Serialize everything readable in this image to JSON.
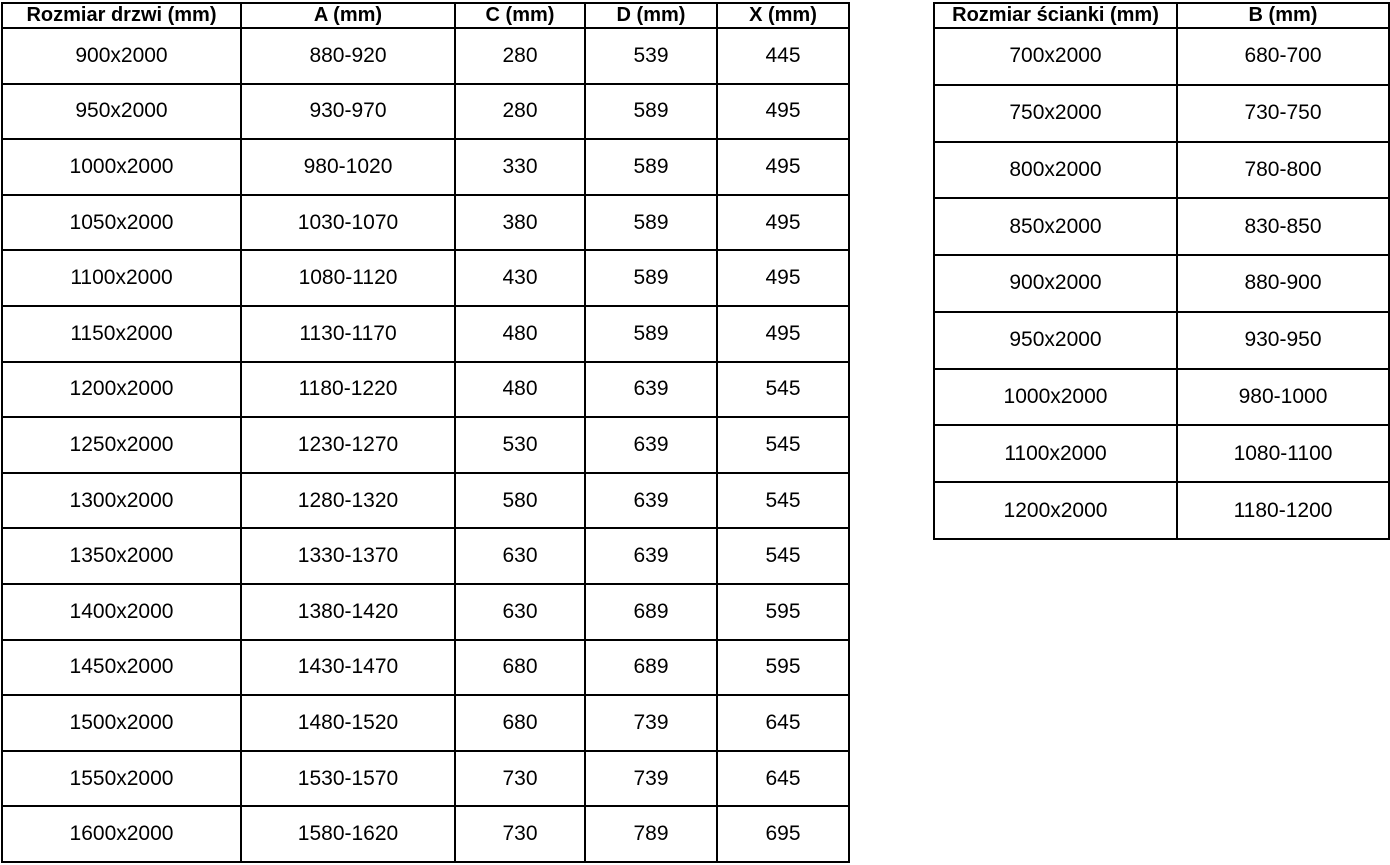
{
  "colors": {
    "background": "#ffffff",
    "border": "#000000",
    "text": "#000000"
  },
  "chart_data": [
    {
      "type": "table",
      "name": "door-size-table",
      "columns": [
        "Rozmiar drzwi (mm)",
        "A (mm)",
        "C (mm)",
        "D (mm)",
        "X (mm)"
      ],
      "rows": [
        [
          "900x2000",
          "880-920",
          "280",
          "539",
          "445"
        ],
        [
          "950x2000",
          "930-970",
          "280",
          "589",
          "495"
        ],
        [
          "1000x2000",
          "980-1020",
          "330",
          "589",
          "495"
        ],
        [
          "1050x2000",
          "1030-1070",
          "380",
          "589",
          "495"
        ],
        [
          "1100x2000",
          "1080-1120",
          "430",
          "589",
          "495"
        ],
        [
          "1150x2000",
          "1130-1170",
          "480",
          "589",
          "495"
        ],
        [
          "1200x2000",
          "1180-1220",
          "480",
          "639",
          "545"
        ],
        [
          "1250x2000",
          "1230-1270",
          "530",
          "639",
          "545"
        ],
        [
          "1300x2000",
          "1280-1320",
          "580",
          "639",
          "545"
        ],
        [
          "1350x2000",
          "1330-1370",
          "630",
          "639",
          "545"
        ],
        [
          "1400x2000",
          "1380-1420",
          "630",
          "689",
          "595"
        ],
        [
          "1450x2000",
          "1430-1470",
          "680",
          "689",
          "595"
        ],
        [
          "1500x2000",
          "1480-1520",
          "680",
          "739",
          "645"
        ],
        [
          "1550x2000",
          "1530-1570",
          "730",
          "739",
          "645"
        ],
        [
          "1600x2000",
          "1580-1620",
          "730",
          "789",
          "695"
        ]
      ]
    },
    {
      "type": "table",
      "name": "wall-size-table",
      "columns": [
        "Rozmiar ścianki (mm)",
        "B (mm)"
      ],
      "rows": [
        [
          "700x2000",
          "680-700"
        ],
        [
          "750x2000",
          "730-750"
        ],
        [
          "800x2000",
          "780-800"
        ],
        [
          "850x2000",
          "830-850"
        ],
        [
          "900x2000",
          "880-900"
        ],
        [
          "950x2000",
          "930-950"
        ],
        [
          "1000x2000",
          "980-1000"
        ],
        [
          "1100x2000",
          "1080-1100"
        ],
        [
          "1200x2000",
          "1180-1200"
        ]
      ]
    }
  ]
}
